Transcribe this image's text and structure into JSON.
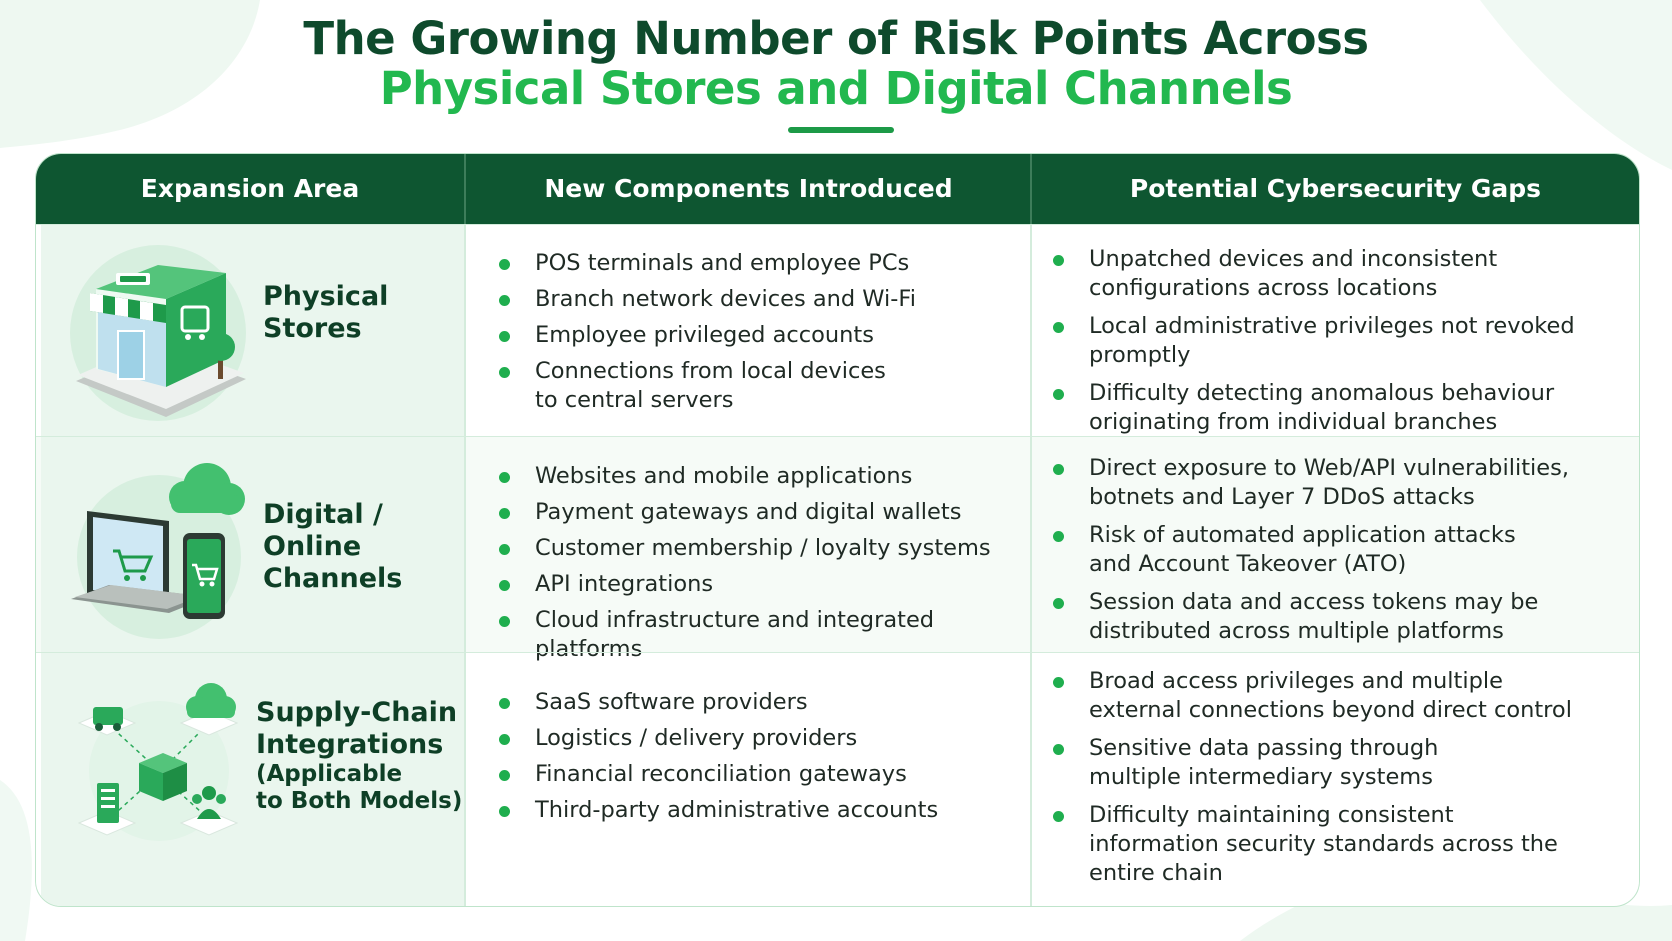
{
  "title": {
    "line1": "The Growing Number of Risk Points Across",
    "line2": "Physical Stores and Digital Channels"
  },
  "table": {
    "headers": [
      "Expansion Area",
      "New Components Introduced",
      "Potential Cybersecurity Gaps"
    ],
    "rows": [
      {
        "area": [
          "Physical",
          "Stores"
        ],
        "area_sub": [],
        "icon": "store-icon",
        "components": [
          "POS terminals and employee PCs",
          "Branch network devices and Wi-Fi",
          "Employee privileged accounts",
          "Connections from local devices to central servers"
        ],
        "gaps": [
          "Unpatched devices and inconsistent configurations across locations",
          "Local administrative privileges not revoked promptly",
          "Difficulty detecting anomalous behaviour originating from individual branches"
        ]
      },
      {
        "area": [
          "Digital /",
          "Online",
          "Channels"
        ],
        "area_sub": [],
        "icon": "laptop-phone-icon",
        "components": [
          "Websites and mobile applications",
          "Payment gateways and digital wallets",
          "Customer membership / loyalty systems",
          "API integrations",
          "Cloud infrastructure and integrated platforms"
        ],
        "gaps": [
          "Direct exposure to Web/API vulnerabilities, botnets and Layer 7 DDoS attacks",
          "Risk of automated application attacks and Account Takeover (ATO)",
          "Session data and access tokens may be distributed across multiple platforms"
        ]
      },
      {
        "area": [
          "Supply-Chain",
          "Integrations"
        ],
        "area_sub": [
          "(Applicable",
          "to Both Models)"
        ],
        "icon": "supply-chain-icon",
        "components": [
          "SaaS software providers",
          "Logistics / delivery providers",
          "Financial reconciliation gateways",
          "Third-party administrative accounts"
        ],
        "gaps": [
          "Broad access privileges and multiple external connections beyond direct control",
          "Sensitive data passing through multiple intermediary systems",
          "Difficulty maintaining consistent information security standards across the entire chain"
        ]
      }
    ]
  },
  "colors": {
    "dark_green": "#0e5631",
    "title_dark": "#0e4a2c",
    "title_green": "#22b84f",
    "bullet": "#1fae4e"
  }
}
